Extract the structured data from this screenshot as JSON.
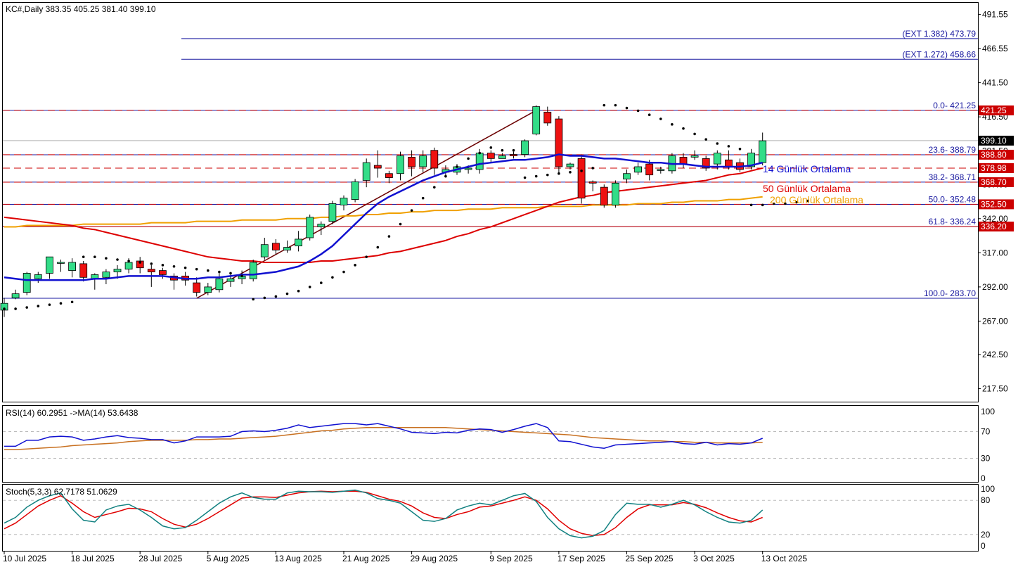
{
  "chart_data": {
    "type": "candlestick",
    "symbol_title": "KC#,Daily  383.35 405.25 381.40 399.10",
    "ylim": [
      208,
      500
    ],
    "y_ticks": [
      "491.55",
      "466.55",
      "441.50",
      "416.50",
      "391.50",
      "367.00",
      "342.00",
      "317.00",
      "292.00",
      "267.00",
      "242.50",
      "217.50"
    ],
    "x_tick_labels": [
      "10 Jul 2025",
      "18 Jul 2025",
      "28 Jul 2025",
      "5 Aug 2025",
      "13 Aug 2025",
      "21 Aug 2025",
      "29 Aug 2025",
      "9 Sep 2025",
      "17 Sep 2025",
      "25 Sep 2025",
      "3 Oct 2025",
      "13 Oct 2025"
    ],
    "x_tick_index": [
      0,
      6,
      12,
      18,
      24,
      30,
      36,
      43,
      49,
      55,
      61,
      67
    ],
    "candles": [
      [
        275,
        280,
        270,
        284
      ],
      [
        284,
        287,
        283,
        290
      ],
      [
        288,
        302,
        286,
        303
      ],
      [
        298,
        301,
        295,
        303
      ],
      [
        302,
        314,
        298,
        314
      ],
      [
        310,
        310,
        303,
        312
      ],
      [
        304,
        310,
        299,
        313
      ],
      [
        309,
        299,
        296,
        311
      ],
      [
        298,
        301,
        290,
        302
      ],
      [
        299,
        303,
        294,
        305
      ],
      [
        303,
        305,
        298,
        308
      ],
      [
        305,
        310,
        302,
        313
      ],
      [
        311,
        306,
        302,
        314
      ],
      [
        305,
        303,
        292,
        308
      ],
      [
        304,
        301,
        298,
        306
      ],
      [
        300,
        297,
        290,
        302
      ],
      [
        300,
        297,
        293,
        303
      ],
      [
        295,
        288,
        285,
        299
      ],
      [
        288,
        292,
        286,
        295
      ],
      [
        290,
        298,
        288,
        302
      ],
      [
        296,
        298,
        292,
        301
      ],
      [
        298,
        300,
        294,
        304
      ],
      [
        298,
        310,
        296,
        312
      ],
      [
        314,
        323,
        312,
        328
      ],
      [
        324,
        319,
        316,
        327
      ],
      [
        319,
        321,
        317,
        326
      ],
      [
        322,
        327,
        318,
        333
      ],
      [
        328,
        343,
        326,
        345
      ],
      [
        336,
        338,
        330,
        340
      ],
      [
        340,
        353,
        338,
        355
      ],
      [
        352,
        357,
        348,
        359
      ],
      [
        356,
        369,
        354,
        371
      ],
      [
        370,
        383,
        365,
        386
      ],
      [
        381,
        379,
        372,
        392
      ],
      [
        375,
        372,
        368,
        377
      ],
      [
        375,
        388,
        370,
        391
      ],
      [
        387,
        380,
        373,
        392
      ],
      [
        380,
        388,
        376,
        392
      ],
      [
        392,
        379,
        374,
        394
      ],
      [
        376,
        378,
        372,
        381
      ],
      [
        376,
        380,
        374,
        382
      ],
      [
        378,
        379,
        375,
        381
      ],
      [
        378,
        390,
        375,
        393
      ],
      [
        390,
        386,
        383,
        392
      ],
      [
        386,
        388,
        386,
        390
      ],
      [
        389,
        388,
        386,
        391
      ],
      [
        389,
        399,
        387,
        400
      ],
      [
        404,
        424,
        403,
        425
      ],
      [
        420,
        412,
        410,
        424
      ],
      [
        415,
        380,
        375,
        417
      ],
      [
        380,
        382,
        378,
        383
      ],
      [
        386,
        357,
        353,
        389
      ],
      [
        369,
        368,
        362,
        370
      ],
      [
        365,
        352,
        350,
        367
      ],
      [
        352,
        368,
        350,
        370
      ],
      [
        371,
        375,
        368,
        378
      ],
      [
        376,
        380,
        374,
        383
      ],
      [
        382,
        374,
        370,
        385
      ],
      [
        378,
        378,
        375,
        380
      ],
      [
        377,
        388,
        375,
        390
      ],
      [
        387,
        382,
        379,
        390
      ],
      [
        387,
        388,
        385,
        392
      ],
      [
        386,
        379,
        377,
        388
      ],
      [
        382,
        390,
        378,
        392
      ],
      [
        385,
        380,
        378,
        392
      ],
      [
        383,
        378,
        376,
        386
      ],
      [
        380,
        390,
        378,
        393
      ],
      [
        383,
        399,
        381,
        405
      ]
    ],
    "ma14": [
      299,
      298,
      297,
      297,
      297,
      297,
      297,
      297,
      298,
      298,
      299,
      300,
      300,
      300,
      300,
      299,
      298,
      298,
      299,
      299,
      300,
      301,
      301,
      302,
      303,
      305,
      307,
      311,
      316,
      322,
      330,
      338,
      346,
      353,
      358,
      362,
      366,
      370,
      373,
      376,
      378,
      380,
      382,
      383,
      384,
      385,
      385,
      386,
      387,
      389,
      388,
      388,
      387,
      386,
      386,
      385,
      384,
      383,
      383,
      382,
      382,
      381,
      380,
      380,
      380,
      380,
      381,
      383
    ],
    "ma50": [
      343,
      342,
      341,
      340,
      339,
      338,
      337,
      335,
      334,
      332,
      330,
      328,
      326,
      324,
      322,
      320,
      318,
      316,
      314,
      313,
      312,
      311,
      311,
      310,
      310,
      310,
      310,
      310,
      311,
      311,
      312,
      313,
      314,
      315,
      317,
      318,
      320,
      322,
      324,
      326,
      329,
      331,
      334,
      336,
      339,
      342,
      345,
      348,
      351,
      354,
      356,
      358,
      359,
      361,
      362,
      363,
      364,
      365,
      366,
      367,
      368,
      369,
      370,
      372,
      374,
      375,
      377,
      379
    ],
    "ma200": [
      336,
      336,
      337,
      337,
      337,
      337,
      337,
      338,
      338,
      338,
      338,
      338,
      338,
      339,
      339,
      339,
      339,
      340,
      340,
      340,
      340,
      341,
      341,
      341,
      341,
      342,
      342,
      342,
      343,
      343,
      344,
      344,
      345,
      345,
      346,
      346,
      347,
      347,
      348,
      348,
      348,
      349,
      349,
      349,
      350,
      350,
      350,
      350,
      351,
      351,
      351,
      351,
      352,
      352,
      352,
      352,
      353,
      353,
      353,
      354,
      354,
      355,
      355,
      355,
      356,
      356,
      357,
      358
    ],
    "psar": [
      [
        0,
        276
      ],
      [
        1,
        276
      ],
      [
        2,
        277
      ],
      [
        3,
        278
      ],
      [
        4,
        279
      ],
      [
        5,
        280
      ],
      [
        6,
        281
      ],
      [
        7,
        314
      ],
      [
        8,
        314
      ],
      [
        9,
        313
      ],
      [
        10,
        312
      ],
      [
        11,
        311
      ],
      [
        12,
        310
      ],
      [
        13,
        309
      ],
      [
        14,
        308
      ],
      [
        15,
        307
      ],
      [
        16,
        306
      ],
      [
        17,
        305
      ],
      [
        18,
        304
      ],
      [
        19,
        303
      ],
      [
        20,
        302
      ],
      [
        21,
        300
      ],
      [
        22,
        283
      ],
      [
        23,
        284
      ],
      [
        24,
        285
      ],
      [
        25,
        287
      ],
      [
        26,
        289
      ],
      [
        27,
        292
      ],
      [
        28,
        295
      ],
      [
        29,
        299
      ],
      [
        30,
        303
      ],
      [
        31,
        308
      ],
      [
        32,
        314
      ],
      [
        33,
        321
      ],
      [
        34,
        329
      ],
      [
        35,
        338
      ],
      [
        36,
        348
      ],
      [
        37,
        357
      ],
      [
        38,
        365
      ],
      [
        39,
        373
      ],
      [
        40,
        380
      ],
      [
        41,
        386
      ],
      [
        42,
        390
      ],
      [
        43,
        394
      ],
      [
        44,
        392
      ],
      [
        45,
        392
      ],
      [
        46,
        372
      ],
      [
        47,
        373
      ],
      [
        48,
        374
      ],
      [
        49,
        375
      ],
      [
        50,
        376
      ],
      [
        51,
        377
      ],
      [
        52,
        379
      ],
      [
        53,
        425
      ],
      [
        54,
        425
      ],
      [
        55,
        423
      ],
      [
        56,
        421
      ],
      [
        57,
        418
      ],
      [
        58,
        415
      ],
      [
        59,
        411
      ],
      [
        60,
        408
      ],
      [
        61,
        404
      ],
      [
        62,
        400
      ],
      [
        63,
        397
      ],
      [
        64,
        395
      ],
      [
        65,
        393
      ],
      [
        66,
        352
      ],
      [
        67,
        352
      ],
      [
        68,
        353
      ],
      [
        69,
        353
      ],
      [
        70,
        354
      ],
      [
        71,
        355
      ]
    ],
    "ma_labels": {
      "ma14": "14 Günlük Ortalama",
      "ma50": "50 Günlük Ortalama",
      "ma200": "200 Günlük Ortalama"
    },
    "fib_levels": [
      {
        "label": "(EXT 1.382)  473.79",
        "value": 473.79
      },
      {
        "label": "(EXT 1.272)  458.66",
        "value": 458.66
      },
      {
        "label": "0.0- 421.25",
        "value": 421.25
      },
      {
        "label": "23.6- 388.79",
        "value": 388.79
      },
      {
        "label": "38.2- 368.71",
        "value": 368.71
      },
      {
        "label": "50.0- 352.48",
        "value": 352.48
      },
      {
        "label": "61.8- 336.24",
        "value": 336.24
      },
      {
        "label": "100.0- 283.70",
        "value": 283.7
      }
    ],
    "h_lines": [
      {
        "label": "421.25",
        "value": 421.25,
        "color": "#cc0000",
        "dashed": true
      },
      {
        "label": "388.80",
        "value": 388.8,
        "color": "#cc0000",
        "dashed": true
      },
      {
        "label": "378.98",
        "value": 378.98,
        "color": "#cc0000",
        "dashed": true
      },
      {
        "label": "368.70",
        "value": 368.7,
        "color": "#cc0000",
        "dashed": true
      },
      {
        "label": "352.50",
        "value": 352.5,
        "color": "#cc0000",
        "dashed": true
      },
      {
        "label": "336.20",
        "value": 336.2,
        "color": "#cc0000",
        "dashed": false
      }
    ],
    "last_price": "399.10",
    "trend_line": {
      "from": [
        17,
        283.7
      ],
      "to": [
        47,
        421.25
      ]
    },
    "rsi": {
      "title": "RSI(14) 60.2951  ->MA(14) 53.6438",
      "levels": [
        "100",
        "70",
        "30",
        "0"
      ],
      "rsi": [
        48,
        48,
        57,
        57,
        62,
        63,
        62,
        57,
        59,
        62,
        64,
        61,
        60,
        58,
        58,
        53,
        56,
        62,
        62,
        62,
        63,
        70,
        71,
        70,
        72,
        75,
        80,
        76,
        78,
        80,
        82,
        82,
        80,
        82,
        78,
        74,
        69,
        68,
        67,
        69,
        68,
        72,
        74,
        73,
        69,
        73,
        78,
        82,
        76,
        56,
        55,
        51,
        47,
        45,
        50,
        51,
        52,
        53,
        54,
        55,
        52,
        51,
        54,
        50,
        52,
        51,
        53,
        60
      ],
      "ma": [
        43,
        43,
        44,
        45,
        46,
        47,
        49,
        50,
        51,
        52,
        53,
        55,
        56,
        57,
        57,
        57,
        57,
        58,
        58,
        59,
        59,
        60,
        61,
        62,
        63,
        65,
        67,
        69,
        71,
        72,
        74,
        75,
        76,
        76,
        76,
        76,
        76,
        76,
        76,
        76,
        75,
        74,
        73,
        72,
        71,
        70,
        69,
        68,
        67,
        66,
        65,
        63,
        61,
        60,
        59,
        58,
        57,
        56,
        56,
        55,
        55,
        54,
        54,
        53,
        53,
        53,
        53,
        54
      ]
    },
    "stoch": {
      "title": "Stoch(5,3,3) 62.7178 51.0629",
      "levels": [
        "100",
        "80",
        "20",
        "0"
      ],
      "k": [
        40,
        50,
        68,
        80,
        88,
        93,
        65,
        45,
        42,
        63,
        70,
        73,
        63,
        50,
        35,
        30,
        32,
        45,
        60,
        75,
        86,
        93,
        85,
        82,
        82,
        93,
        96,
        95,
        95,
        94,
        96,
        98,
        93,
        83,
        80,
        75,
        60,
        45,
        43,
        48,
        63,
        70,
        75,
        72,
        80,
        88,
        92,
        78,
        50,
        30,
        18,
        14,
        17,
        27,
        55,
        75,
        73,
        73,
        68,
        73,
        80,
        72,
        60,
        50,
        42,
        40,
        45,
        63
      ],
      "d": [
        30,
        40,
        55,
        70,
        80,
        88,
        75,
        60,
        50,
        55,
        60,
        66,
        65,
        60,
        48,
        38,
        33,
        38,
        48,
        60,
        72,
        84,
        86,
        86,
        85,
        89,
        93,
        95,
        96,
        95,
        96,
        96,
        94,
        88,
        82,
        78,
        70,
        58,
        50,
        48,
        55,
        60,
        68,
        70,
        75,
        80,
        86,
        80,
        65,
        45,
        30,
        22,
        18,
        20,
        32,
        50,
        65,
        72,
        72,
        72,
        76,
        73,
        67,
        58,
        50,
        44,
        42,
        50
      ]
    }
  }
}
